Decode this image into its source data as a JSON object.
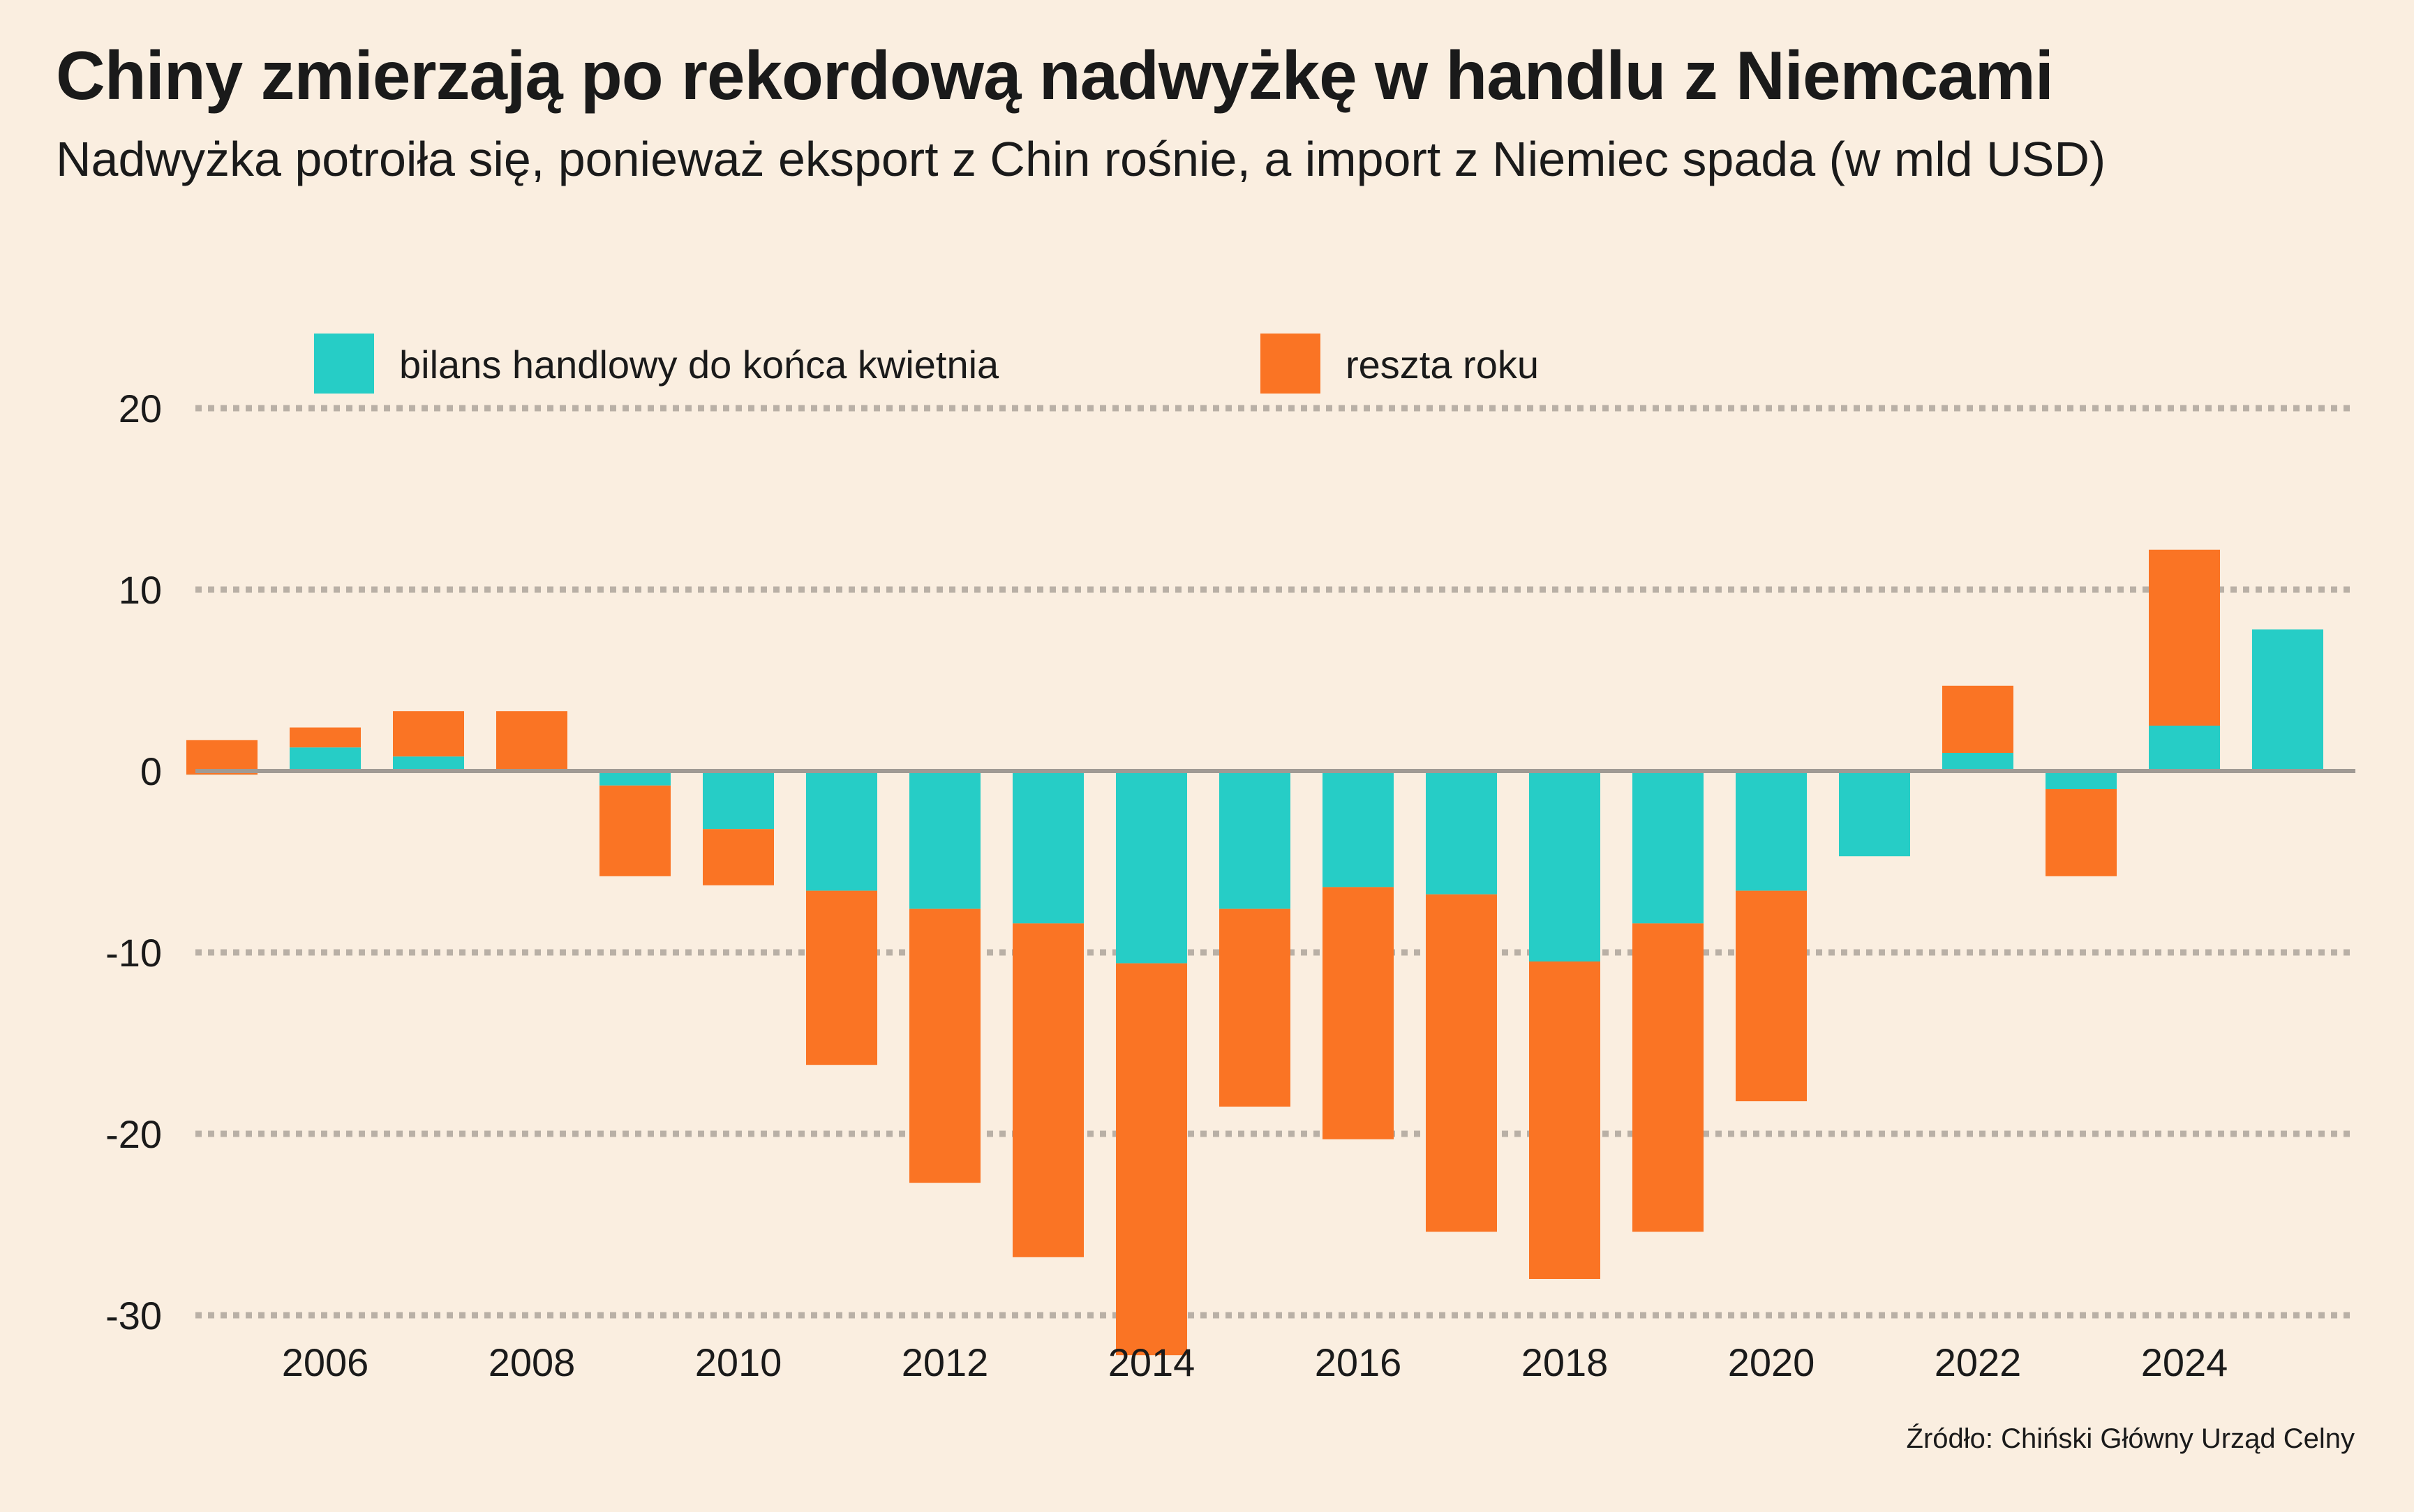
{
  "header": {
    "title": "Chiny zmierzają po rekordową nadwyżkę w handlu z Niemcami",
    "subtitle": "Nadwyżka potroiła się, ponieważ eksport z Chin rośnie, a import z Niemiec spada (w mld USD)"
  },
  "footer": {
    "source": "Źródło: Chiński Główny Urząd Celny"
  },
  "chart_data": {
    "type": "bar",
    "stacked": true,
    "grid": true,
    "legend_position": "top",
    "ylim": [
      -30,
      20
    ],
    "yticks": [
      20,
      10,
      0,
      -10,
      -20,
      -30
    ],
    "xticks": [
      "2006",
      "2008",
      "2010",
      "2012",
      "2014",
      "2016",
      "2018",
      "2020",
      "2022",
      "2024"
    ],
    "categories": [
      "2005",
      "2006",
      "2007",
      "2008",
      "2009",
      "2010",
      "2011",
      "2012",
      "2013",
      "2014",
      "2015",
      "2016",
      "2017",
      "2018",
      "2019",
      "2020",
      "2021",
      "2022",
      "2023",
      "2024",
      "2025"
    ],
    "series": [
      {
        "name": "bilans handlowy do końca kwietnia",
        "color": "#26cdc6",
        "values": [
          -0.2,
          1.3,
          0.8,
          0.1,
          -0.8,
          -3.2,
          -6.6,
          -7.6,
          -8.4,
          -10.6,
          -7.6,
          -6.4,
          -6.8,
          -10.5,
          -8.4,
          -6.6,
          -4.7,
          1.0,
          -1.0,
          2.5,
          7.8
        ]
      },
      {
        "name": "reszta roku",
        "color": "#fa7424",
        "values": [
          1.9,
          1.1,
          2.5,
          3.2,
          -5.0,
          -3.1,
          -9.6,
          -15.1,
          -18.4,
          -21.6,
          -10.9,
          -13.9,
          -18.6,
          -17.5,
          -17.0,
          -11.6,
          0.0,
          3.7,
          -4.8,
          9.7,
          0.0
        ]
      }
    ]
  }
}
